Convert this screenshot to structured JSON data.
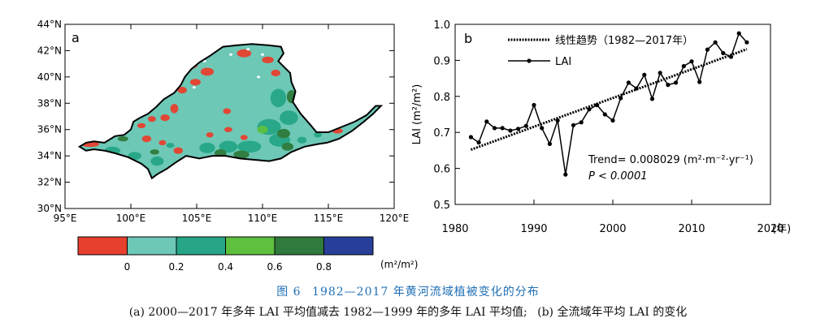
{
  "chart_data": [
    {
      "type": "heatmap",
      "panel_label": "a",
      "x_ticks": [
        "95°E",
        "100°E",
        "105°E",
        "110°E",
        "115°E",
        "120°E"
      ],
      "x_tick_values": [
        95,
        100,
        105,
        110,
        115,
        120
      ],
      "y_ticks": [
        "30°N",
        "32°N",
        "34°N",
        "36°N",
        "38°N",
        "40°N",
        "42°N",
        "44°N"
      ],
      "y_tick_values": [
        30,
        32,
        34,
        36,
        38,
        40,
        42,
        44
      ],
      "xlim": [
        95,
        120
      ],
      "ylim": [
        30,
        44
      ],
      "colorbar": {
        "colors": [
          "#e8402e",
          "#6dc8b6",
          "#26a687",
          "#5dc03e",
          "#2f7a3c",
          "#283f9a"
        ],
        "tick_labels": [
          "0",
          "0.2",
          "0.4",
          "0.6",
          "0.8"
        ],
        "unit": "(m²/m²)"
      }
    },
    {
      "type": "line",
      "panel_label": "b",
      "xlim": [
        1980,
        2020
      ],
      "ylim": [
        0.5,
        1.0
      ],
      "x_ticks": [
        "1980",
        "1990",
        "2000",
        "2010",
        "2020"
      ],
      "x_tick_values": [
        1980,
        1990,
        2000,
        2010,
        2020
      ],
      "y_ticks": [
        "0.5",
        "0.6",
        "0.7",
        "0.8",
        "0.9",
        "1.0"
      ],
      "y_tick_values": [
        0.5,
        0.6,
        0.7,
        0.8,
        0.9,
        1.0
      ],
      "xlabel": "(年)",
      "ylabel": "LAI (m²/m²)",
      "legend_position": "top-left",
      "series": [
        {
          "name": "LAI",
          "style": "line-dot",
          "x": [
            1982,
            1983,
            1984,
            1985,
            1986,
            1987,
            1988,
            1989,
            1990,
            1991,
            1992,
            1993,
            1994,
            1995,
            1996,
            1997,
            1998,
            1999,
            2000,
            2001,
            2002,
            2003,
            2004,
            2005,
            2006,
            2007,
            2008,
            2009,
            2010,
            2011,
            2012,
            2013,
            2014,
            2015,
            2016,
            2017
          ],
          "values": [
            0.687,
            0.672,
            0.73,
            0.712,
            0.712,
            0.705,
            0.71,
            0.718,
            0.776,
            0.712,
            0.668,
            0.733,
            0.583,
            0.72,
            0.728,
            0.764,
            0.776,
            0.75,
            0.733,
            0.795,
            0.838,
            0.822,
            0.86,
            0.793,
            0.865,
            0.832,
            0.838,
            0.884,
            0.897,
            0.84,
            0.93,
            0.95,
            0.92,
            0.91,
            0.975,
            0.95
          ]
        },
        {
          "name": "线性趋势（1982—2017年）",
          "style": "dotted-trend",
          "x": [
            1982,
            2017
          ],
          "values": [
            0.652,
            0.931
          ]
        }
      ],
      "annotations": [
        "Trend= 0.008029 (m²·m⁻²·yr⁻¹)",
        "P < 0.0001"
      ]
    }
  ],
  "captions": {
    "title_figure": "图 6",
    "title_text": "1982—2017 年黄河流域植被变化的分布",
    "sub_a": "(a) 2000—2017 年多年 LAI 平均值减去 1982—1999 年的多年 LAI 平均值;",
    "sub_b": "(b) 全流域年平均 LAI 的变化"
  }
}
